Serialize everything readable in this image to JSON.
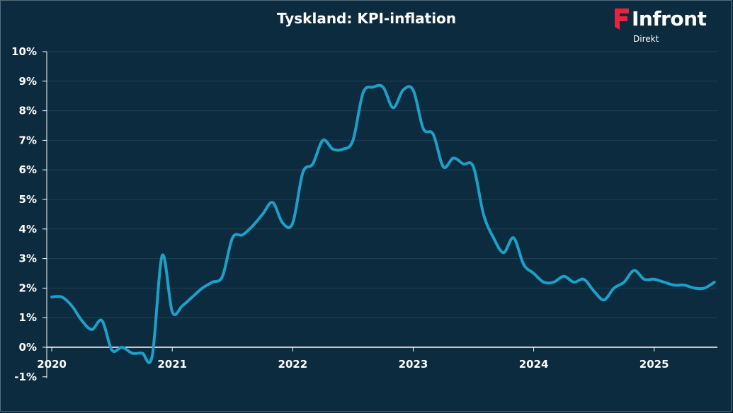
{
  "header": {
    "title": "Tyskland: KPI-inflation"
  },
  "logo": {
    "name": "Infront",
    "sub": "Direkt",
    "accent": "#e8223f"
  },
  "colors": {
    "background": "#0d2b3e",
    "line": "#1ca0c8",
    "text": "#ffffff",
    "grid": "#1e3f54"
  },
  "chart_data": {
    "type": "line",
    "title": "Tyskland: KPI-inflation",
    "xlabel": "",
    "ylabel": "",
    "ylim": [
      -1,
      10
    ],
    "yticks": [
      "-1%",
      "0%",
      "1%",
      "2%",
      "3%",
      "4%",
      "5%",
      "6%",
      "7%",
      "8%",
      "9%",
      "10%"
    ],
    "xlim": [
      "2020-01",
      "2025-07"
    ],
    "xticks": [
      "2020",
      "2021",
      "2022",
      "2023",
      "2024",
      "2025"
    ],
    "grid": true,
    "series": [
      {
        "x": [
          "2020-01",
          "2020-02",
          "2020-03",
          "2020-04",
          "2020-05",
          "2020-06",
          "2020-07",
          "2020-08",
          "2020-09",
          "2020-10",
          "2020-11",
          "2020-12",
          "2021-01",
          "2021-02",
          "2021-03",
          "2021-04",
          "2021-05",
          "2021-06",
          "2021-07",
          "2021-08",
          "2021-09",
          "2021-10",
          "2021-11",
          "2021-12",
          "2022-01",
          "2022-02",
          "2022-03",
          "2022-04",
          "2022-05",
          "2022-06",
          "2022-07",
          "2022-08",
          "2022-09",
          "2022-10",
          "2022-11",
          "2022-12",
          "2023-01",
          "2023-02",
          "2023-03",
          "2023-04",
          "2023-05",
          "2023-06",
          "2023-07",
          "2023-08",
          "2023-09",
          "2023-10",
          "2023-11",
          "2023-12",
          "2024-01",
          "2024-02",
          "2024-03",
          "2024-04",
          "2024-05",
          "2024-06",
          "2024-07",
          "2024-08",
          "2024-09",
          "2024-10",
          "2024-11",
          "2024-12",
          "2025-01",
          "2025-02",
          "2025-03",
          "2025-04",
          "2025-05",
          "2025-06",
          "2025-07"
        ],
        "values": [
          1.7,
          1.7,
          1.4,
          0.9,
          0.6,
          0.9,
          -0.1,
          0.0,
          -0.2,
          -0.2,
          -0.3,
          3.1,
          1.2,
          1.4,
          1.7,
          2.0,
          2.2,
          2.4,
          3.7,
          3.8,
          4.1,
          4.5,
          4.9,
          4.2,
          4.2,
          5.9,
          6.2,
          7.0,
          6.7,
          6.7,
          7.0,
          8.6,
          8.8,
          8.8,
          8.1,
          8.7,
          8.7,
          7.4,
          7.2,
          6.1,
          6.4,
          6.2,
          6.1,
          4.5,
          3.7,
          3.2,
          3.7,
          2.8,
          2.5,
          2.2,
          2.2,
          2.4,
          2.2,
          2.3,
          1.9,
          1.6,
          2.0,
          2.2,
          2.6,
          2.3,
          2.3,
          2.2,
          2.1,
          2.1,
          2.0,
          2.0,
          2.2
        ]
      }
    ]
  }
}
